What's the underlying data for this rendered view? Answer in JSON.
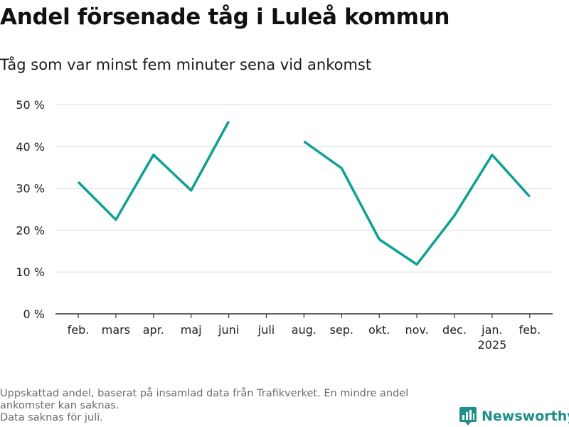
{
  "chart_data": {
    "type": "line",
    "title": "Andel försenade tåg i Luleå kommun",
    "subtitle": "Tåg som var minst fem minuter sena vid ankomst",
    "categories": [
      "feb.",
      "mars",
      "apr.",
      "maj",
      "juni",
      "juli",
      "aug.",
      "sep.",
      "okt.",
      "nov.",
      "dec.",
      "jan.",
      "feb."
    ],
    "year_label": "2025",
    "values": [
      31.5,
      22.5,
      38,
      29.5,
      46,
      null,
      41.2,
      34.8,
      17.8,
      11.8,
      23.5,
      38,
      28
    ],
    "yticks": [
      "0 %",
      "10 %",
      "20 %",
      "30 %",
      "40 %",
      "50 %"
    ],
    "ylim": [
      0,
      50
    ],
    "grid": true,
    "line_color": "#0ea193"
  },
  "footnote": {
    "lines": [
      "Uppskattad andel, baserat på insamlad data från Trafikverket. En mindre andel",
      "ankomster kan saknas.",
      "Data saknas för juli."
    ]
  },
  "brand": {
    "name": "Newsworthy",
    "icon": "newsworthy-logo-icon",
    "color": "#1f8f8a"
  }
}
